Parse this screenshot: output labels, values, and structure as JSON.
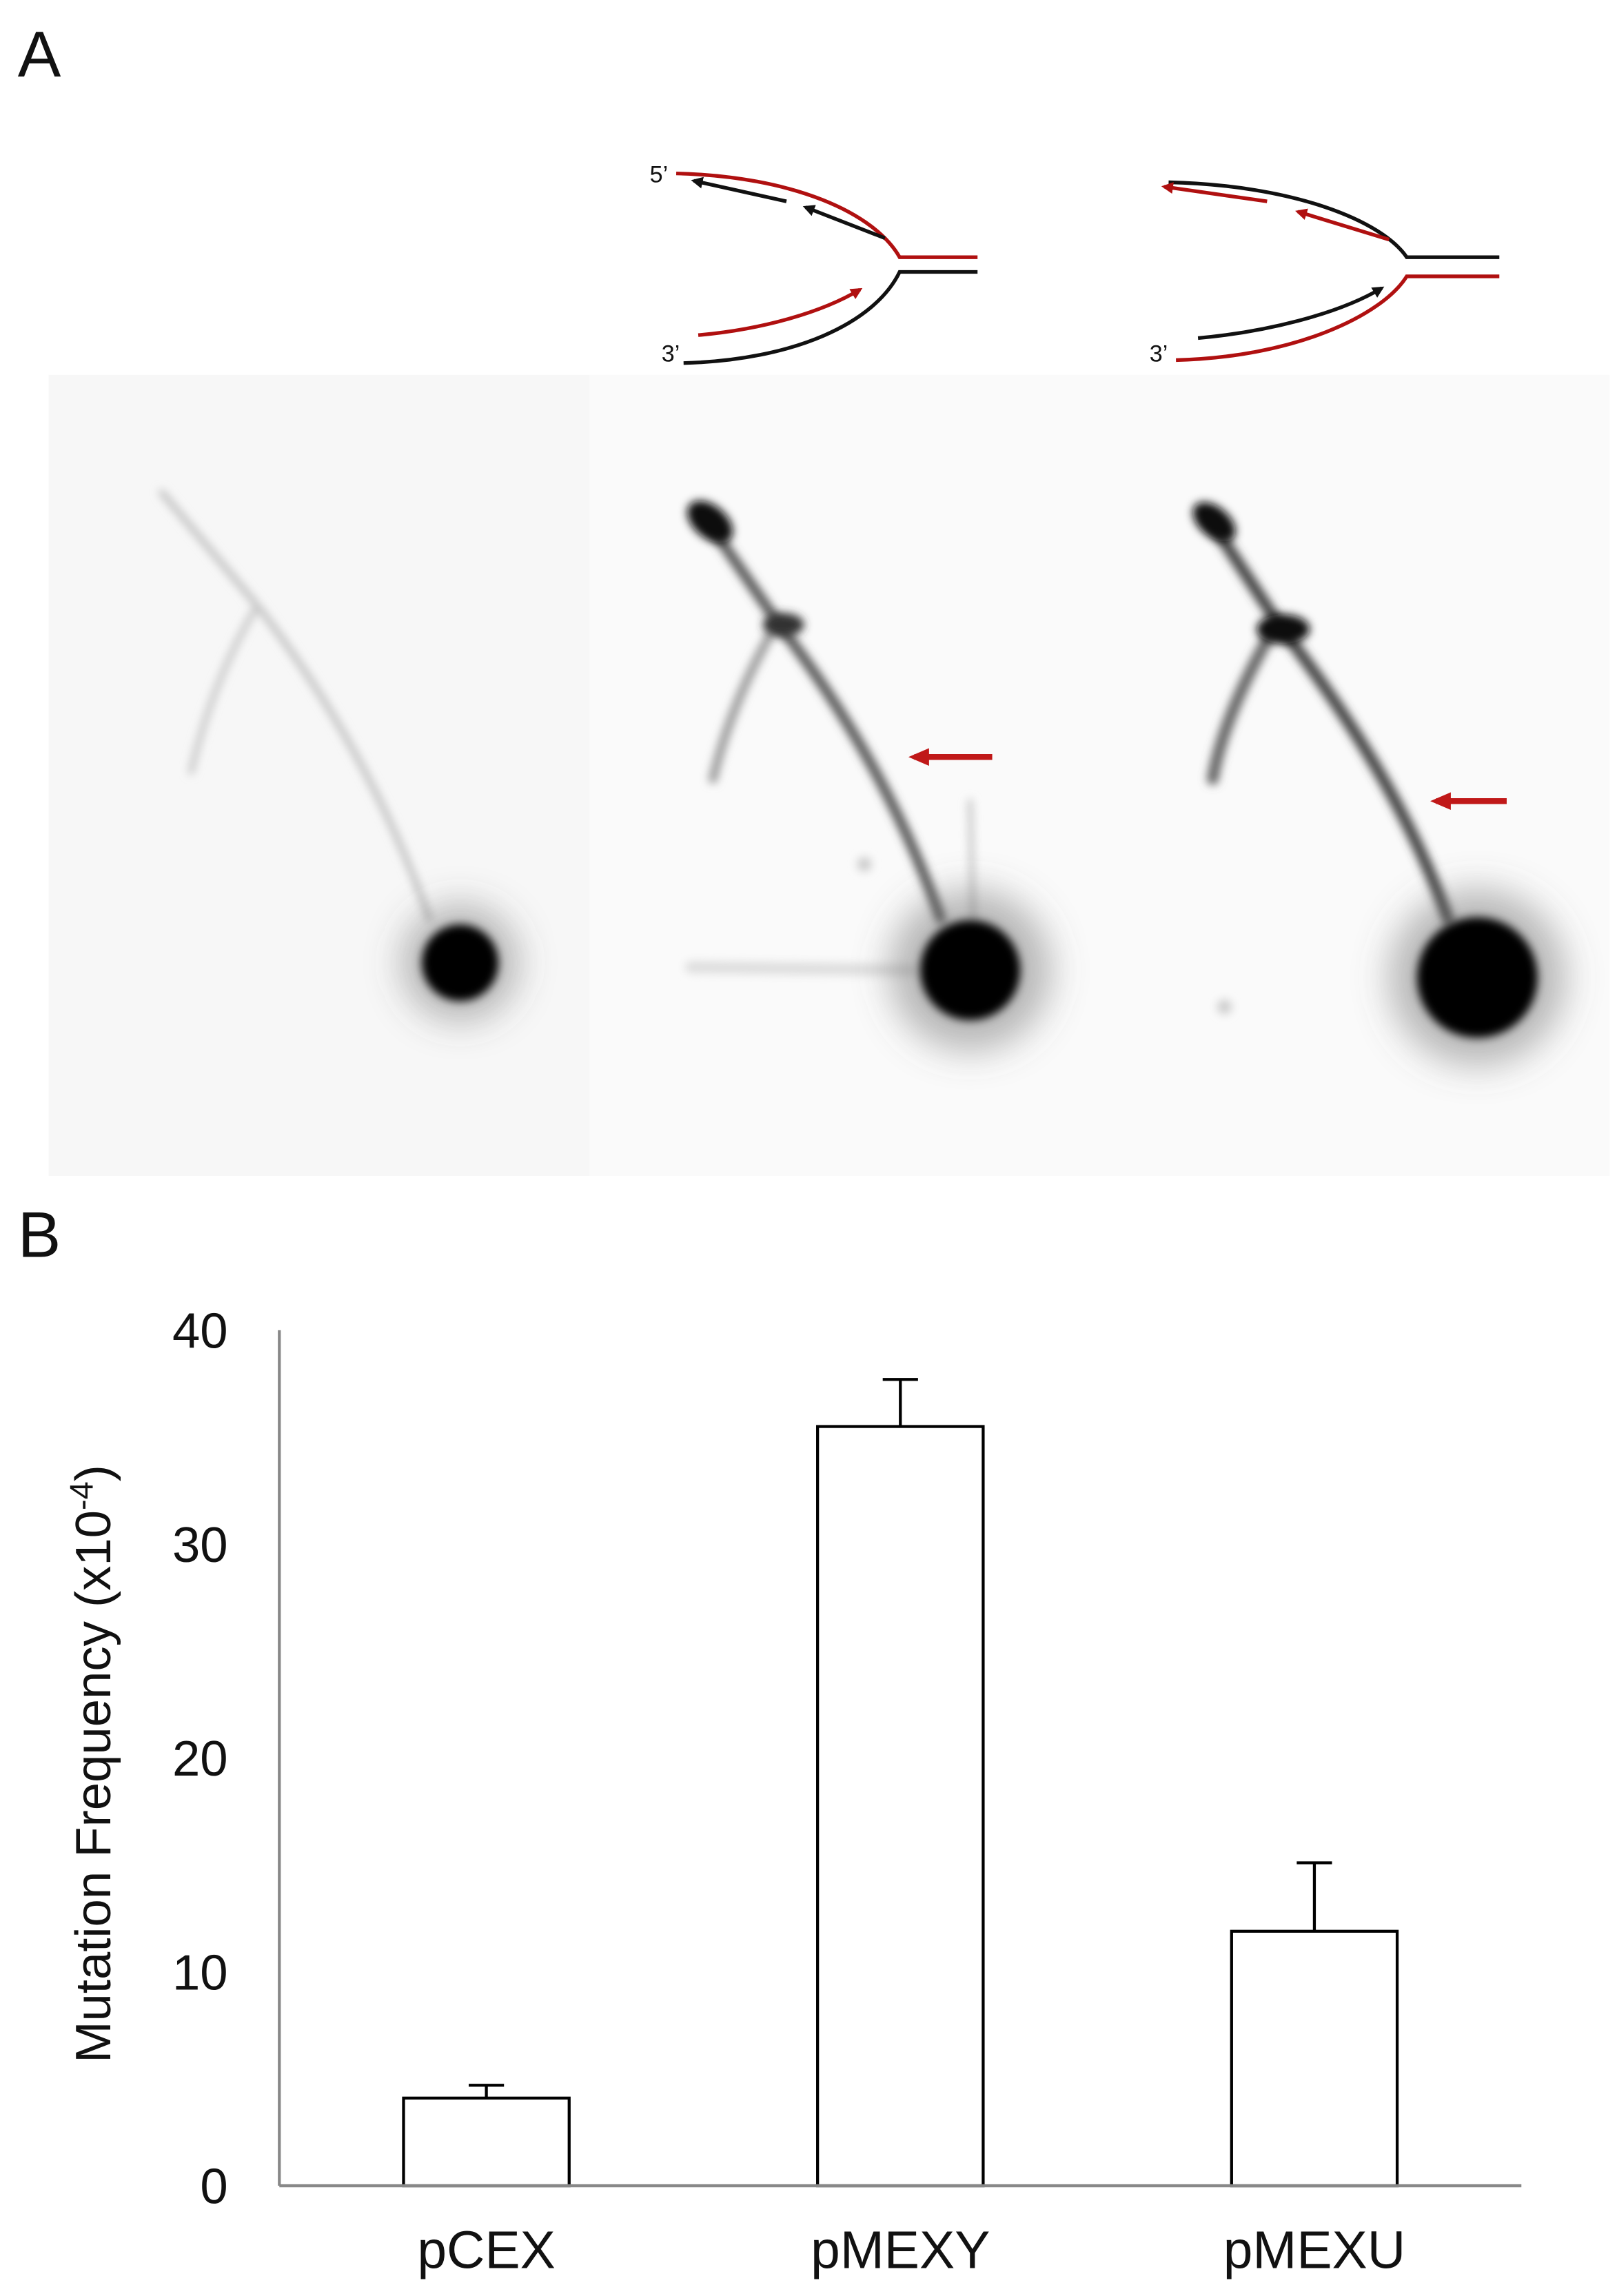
{
  "panels": {
    "a": "A",
    "b": "B"
  },
  "diagram": {
    "left_fork": {
      "top_end": "5’",
      "bottom_end": "3’"
    },
    "right_fork": {
      "bottom_end": "3’"
    }
  },
  "chart_data": {
    "type": "bar",
    "categories": [
      "pCEX",
      "pMEXY",
      "pMEXU"
    ],
    "values": [
      4.1,
      35.5,
      11.9
    ],
    "errors": [
      0.6,
      2.2,
      3.2
    ],
    "color": "#ffffff",
    "edge_color": "#000000",
    "y_label": {
      "text": "Mutation Frequency (x10",
      "exponent": "-4",
      "close": ")"
    },
    "ylim": [
      0,
      40
    ],
    "yticks": [
      0,
      10,
      20,
      30,
      40
    ],
    "grid": false
  }
}
